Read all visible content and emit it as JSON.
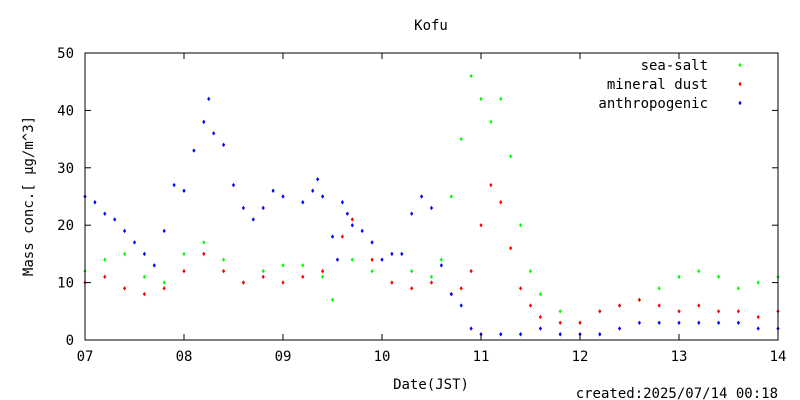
{
  "chart_data": {
    "type": "scatter",
    "title": "Kofu",
    "xlabel": "Date(JST)",
    "ylabel": "Mass conc.[ μg/m^3]",
    "x_ticks": [
      "07",
      "08",
      "09",
      "10",
      "11",
      "12",
      "13",
      "14"
    ],
    "xlim": [
      7,
      14
    ],
    "ylim": [
      0,
      50
    ],
    "y_ticks": [
      0,
      10,
      20,
      30,
      40,
      50
    ],
    "grid": false,
    "legend_position": "top-right",
    "footer": "created:2025/07/14 00:18",
    "series": [
      {
        "name": "sea-salt",
        "color": "#00ff00",
        "points": [
          [
            7.0,
            12
          ],
          [
            7.2,
            14
          ],
          [
            7.4,
            15
          ],
          [
            7.6,
            11
          ],
          [
            7.8,
            10
          ],
          [
            8.0,
            15
          ],
          [
            8.2,
            17
          ],
          [
            8.4,
            14
          ],
          [
            8.6,
            10
          ],
          [
            8.8,
            12
          ],
          [
            9.0,
            13
          ],
          [
            9.2,
            13
          ],
          [
            9.4,
            11
          ],
          [
            9.5,
            7
          ],
          [
            9.7,
            14
          ],
          [
            9.9,
            12
          ],
          [
            10.1,
            10
          ],
          [
            10.3,
            12
          ],
          [
            10.5,
            11
          ],
          [
            10.6,
            14
          ],
          [
            10.7,
            25
          ],
          [
            10.8,
            35
          ],
          [
            10.9,
            46
          ],
          [
            11.0,
            42
          ],
          [
            11.1,
            38
          ],
          [
            11.2,
            42
          ],
          [
            11.3,
            32
          ],
          [
            11.4,
            20
          ],
          [
            11.5,
            12
          ],
          [
            11.6,
            8
          ],
          [
            11.8,
            5
          ],
          [
            12.0,
            3
          ],
          [
            12.2,
            5
          ],
          [
            12.4,
            6
          ],
          [
            12.6,
            7
          ],
          [
            12.8,
            9
          ],
          [
            13.0,
            11
          ],
          [
            13.2,
            12
          ],
          [
            13.4,
            11
          ],
          [
            13.6,
            9
          ],
          [
            13.8,
            10
          ],
          [
            14.0,
            11
          ]
        ]
      },
      {
        "name": "mineral dust",
        "color": "#ff0000",
        "points": [
          [
            7.0,
            10
          ],
          [
            7.2,
            11
          ],
          [
            7.4,
            9
          ],
          [
            7.6,
            8
          ],
          [
            7.8,
            9
          ],
          [
            8.0,
            12
          ],
          [
            8.2,
            15
          ],
          [
            8.4,
            12
          ],
          [
            8.6,
            10
          ],
          [
            8.8,
            11
          ],
          [
            9.0,
            10
          ],
          [
            9.2,
            11
          ],
          [
            9.4,
            12
          ],
          [
            9.6,
            18
          ],
          [
            9.7,
            21
          ],
          [
            9.9,
            14
          ],
          [
            10.1,
            10
          ],
          [
            10.3,
            9
          ],
          [
            10.5,
            10
          ],
          [
            10.7,
            8
          ],
          [
            10.8,
            9
          ],
          [
            10.9,
            12
          ],
          [
            11.0,
            20
          ],
          [
            11.1,
            27
          ],
          [
            11.2,
            24
          ],
          [
            11.3,
            16
          ],
          [
            11.4,
            9
          ],
          [
            11.5,
            6
          ],
          [
            11.6,
            4
          ],
          [
            11.8,
            3
          ],
          [
            12.0,
            3
          ],
          [
            12.2,
            5
          ],
          [
            12.4,
            6
          ],
          [
            12.6,
            7
          ],
          [
            12.8,
            6
          ],
          [
            13.0,
            5
          ],
          [
            13.2,
            6
          ],
          [
            13.4,
            5
          ],
          [
            13.6,
            5
          ],
          [
            13.8,
            4
          ],
          [
            14.0,
            5
          ]
        ]
      },
      {
        "name": "anthropogenic",
        "color": "#0000ff",
        "points": [
          [
            7.0,
            25
          ],
          [
            7.1,
            24
          ],
          [
            7.2,
            22
          ],
          [
            7.3,
            21
          ],
          [
            7.4,
            19
          ],
          [
            7.5,
            17
          ],
          [
            7.6,
            15
          ],
          [
            7.7,
            13
          ],
          [
            7.8,
            19
          ],
          [
            7.9,
            27
          ],
          [
            8.0,
            26
          ],
          [
            8.1,
            33
          ],
          [
            8.2,
            38
          ],
          [
            8.25,
            42
          ],
          [
            8.3,
            36
          ],
          [
            8.4,
            34
          ],
          [
            8.5,
            27
          ],
          [
            8.6,
            23
          ],
          [
            8.7,
            21
          ],
          [
            8.8,
            23
          ],
          [
            8.9,
            26
          ],
          [
            9.0,
            25
          ],
          [
            9.2,
            24
          ],
          [
            9.3,
            26
          ],
          [
            9.35,
            28
          ],
          [
            9.4,
            25
          ],
          [
            9.5,
            18
          ],
          [
            9.55,
            14
          ],
          [
            9.6,
            24
          ],
          [
            9.65,
            22
          ],
          [
            9.7,
            20
          ],
          [
            9.8,
            19
          ],
          [
            9.9,
            17
          ],
          [
            10.0,
            14
          ],
          [
            10.1,
            15
          ],
          [
            10.2,
            15
          ],
          [
            10.3,
            22
          ],
          [
            10.4,
            25
          ],
          [
            10.5,
            23
          ],
          [
            10.6,
            13
          ],
          [
            10.7,
            8
          ],
          [
            10.8,
            6
          ],
          [
            10.9,
            2
          ],
          [
            11.0,
            1
          ],
          [
            11.2,
            1
          ],
          [
            11.4,
            1
          ],
          [
            11.6,
            2
          ],
          [
            11.8,
            1
          ],
          [
            12.0,
            1
          ],
          [
            12.2,
            1
          ],
          [
            12.4,
            2
          ],
          [
            12.6,
            3
          ],
          [
            12.8,
            3
          ],
          [
            13.0,
            3
          ],
          [
            13.2,
            3
          ],
          [
            13.4,
            3
          ],
          [
            13.6,
            3
          ],
          [
            13.8,
            2
          ],
          [
            14.0,
            2
          ]
        ]
      }
    ]
  }
}
